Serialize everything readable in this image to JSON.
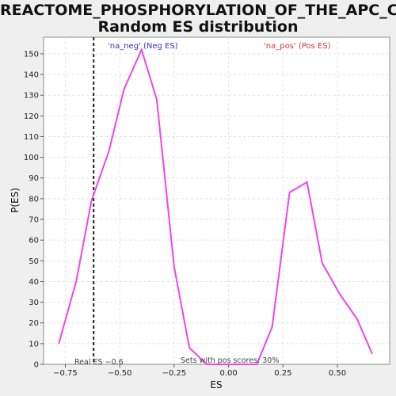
{
  "chart_data": {
    "type": "line",
    "title_line1": "REACTOME_PHOSPHORYLATION_OF_THE_APC_C:",
    "title_line2": "Random ES distribution",
    "xlabel": "ES",
    "ylabel": "P(ES)",
    "xlim": [
      -0.85,
      0.74
    ],
    "ylim": [
      0,
      158
    ],
    "x_ticks": [
      -0.75,
      -0.5,
      -0.25,
      0.0,
      0.25,
      0.5
    ],
    "x_tick_labels": [
      "−0.75",
      "−0.50",
      "−0.25",
      "0.00",
      "0.25",
      "0.50"
    ],
    "y_ticks": [
      0,
      10,
      20,
      30,
      40,
      50,
      60,
      70,
      80,
      90,
      100,
      110,
      120,
      130,
      140,
      150
    ],
    "grid": true,
    "series": [
      {
        "color": "#ee44ee",
        "x": [
          -0.78,
          -0.7,
          -0.63,
          -0.55,
          -0.48,
          -0.4,
          -0.33,
          -0.25,
          -0.18,
          -0.1,
          -0.03,
          0.05,
          0.13,
          0.2,
          0.28,
          0.36,
          0.43,
          0.51,
          0.59,
          0.66
        ],
        "y": [
          10,
          40,
          79,
          103,
          133,
          152,
          128,
          47,
          8,
          0,
          0,
          0,
          0,
          18,
          83,
          88,
          49,
          34,
          22,
          5
        ]
      }
    ],
    "real_es": {
      "value": -0.62,
      "label": "Real ES −0.6"
    },
    "annotations": {
      "neg_label": "'na_neg' (Neg ES)",
      "pos_label": "'na_pos' (Pos ES)",
      "pos_fraction": "Sets with pos scores: 30%"
    }
  }
}
